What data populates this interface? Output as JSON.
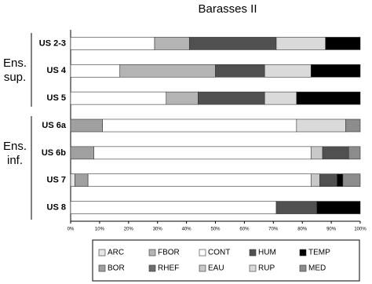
{
  "chart_data": {
    "type": "stacked-bar-horizontal",
    "title": "Barasses II",
    "categories": [
      "US 2-3",
      "US 4",
      "US 5",
      "US 6a",
      "US 6b",
      "US 7",
      "US 8"
    ],
    "groups": [
      "Ens. sup.",
      "Ens. inf."
    ],
    "series": [
      {
        "name": "ARC",
        "color": "#e6e6e6",
        "values": [
          0,
          0,
          0,
          0,
          0,
          1.5,
          0
        ]
      },
      {
        "name": "BOR",
        "color": "#a0a0a0",
        "values": [
          0,
          0,
          0,
          11,
          8,
          4.5,
          0
        ]
      },
      {
        "name": "CONT",
        "color": "#ffffff",
        "values": [
          29,
          17,
          33,
          67,
          75,
          77,
          71
        ]
      },
      {
        "name": "FBOR",
        "color": "#b4b4b4",
        "values": [
          12,
          33,
          11,
          0,
          0,
          0,
          0
        ]
      },
      {
        "name": "EAU",
        "color": "#c8c8c8",
        "values": [
          0,
          0,
          0,
          0,
          4,
          3,
          0
        ]
      },
      {
        "name": "HUM",
        "color": "#505050",
        "values": [
          30,
          17,
          23,
          0,
          9,
          6,
          14
        ]
      },
      {
        "name": "RHEF",
        "color": "#6e6e6e",
        "values": [
          0,
          0,
          0,
          0,
          0,
          0,
          0
        ]
      },
      {
        "name": "RUP",
        "color": "#dadada",
        "values": [
          17,
          16,
          11,
          17,
          0,
          0,
          0
        ]
      },
      {
        "name": "TEMP",
        "color": "#000000",
        "values": [
          12,
          17,
          22,
          0,
          0,
          2,
          15
        ]
      },
      {
        "name": "MED",
        "color": "#8c8c8c",
        "values": [
          0,
          0,
          0,
          5,
          4,
          6,
          0
        ]
      }
    ],
    "xlim": [
      0,
      100
    ],
    "xticks": [
      {
        "value": 0,
        "label": "0%"
      },
      {
        "value": 10,
        "label": "10%"
      },
      {
        "value": 20,
        "label": "20%"
      },
      {
        "value": 30,
        "label": "30%"
      },
      {
        "value": 40,
        "label": "40%"
      },
      {
        "value": 50,
        "label": "50%"
      },
      {
        "value": 60,
        "label": "60%"
      },
      {
        "value": 70,
        "label": "70%"
      },
      {
        "value": 80,
        "label": "80%"
      },
      {
        "value": 90,
        "label": "90%"
      },
      {
        "value": 100,
        "label": "100%"
      }
    ]
  }
}
